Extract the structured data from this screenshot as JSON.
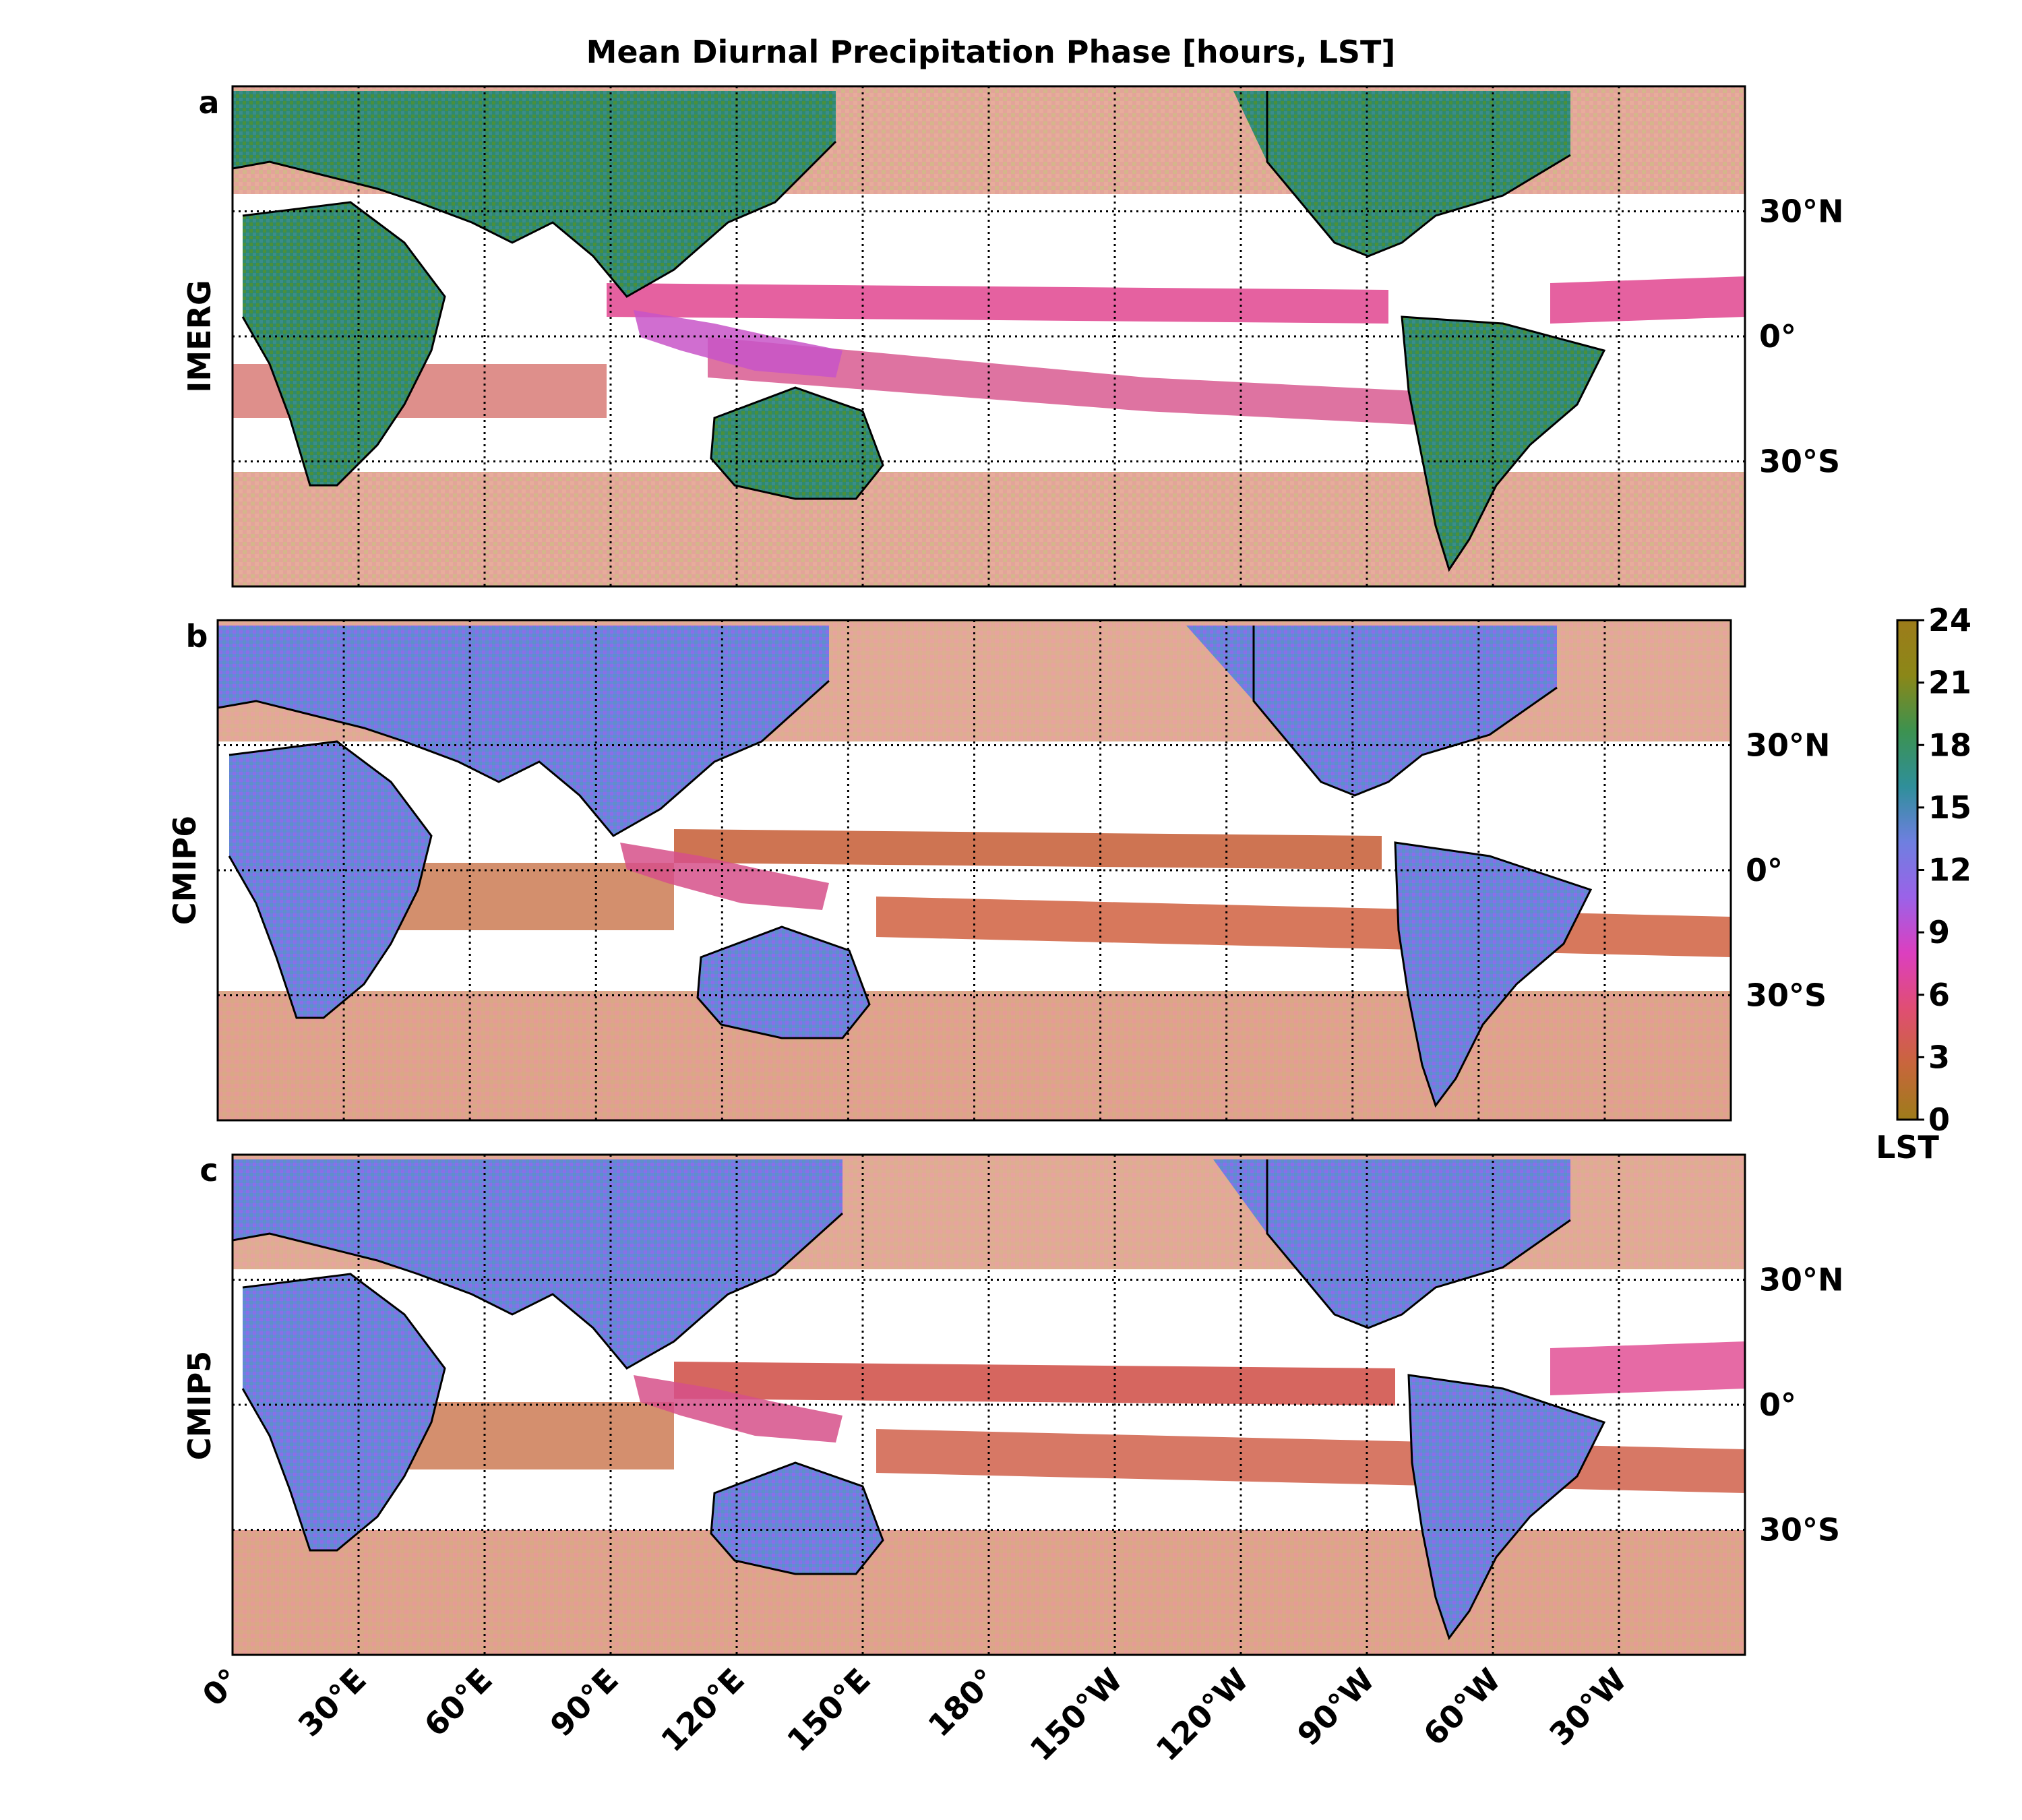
{
  "title": "Mean Diurnal Precipitation Phase [hours, LST]",
  "x_tick_labels": [
    "0°",
    "30°E",
    "60°E",
    "90°E",
    "120°E",
    "150°E",
    "180°",
    "150°W",
    "120°W",
    "90°W",
    "60°W",
    "30°W"
  ],
  "y_tick_labels": [
    "30°N",
    "0°",
    "30°S"
  ],
  "panels": [
    {
      "letter": "a",
      "ylabel": "IMERG"
    },
    {
      "letter": "b",
      "ylabel": "CMIP6"
    },
    {
      "letter": "c",
      "ylabel": "CMIP5"
    }
  ],
  "colorbar": {
    "label": "LST",
    "min": 0,
    "max": 24,
    "tick_labels": [
      "0",
      "3",
      "6",
      "9",
      "12",
      "15",
      "18",
      "21",
      "24"
    ],
    "colors": [
      "#9d7c1a",
      "#c8663c",
      "#e04e73",
      "#dc3fbf",
      "#9b62e8",
      "#6f7fe0",
      "#2f8f9a",
      "#3c9250",
      "#8b8718",
      "#9d7c1a"
    ]
  },
  "chart_data": [
    {
      "type": "heatmap",
      "panel": "a",
      "dataset": "IMERG",
      "title": "Mean Diurnal Precipitation Phase [hours, LST]",
      "xlim": [
        0,
        360
      ],
      "ylim": [
        -60,
        60
      ],
      "value_range": [
        0,
        24
      ],
      "grid": true,
      "regions": [
        {
          "name": "Africa",
          "lon": 20,
          "lat": 0,
          "phase_lst": 17
        },
        {
          "name": "Eurasia",
          "lon": 80,
          "lat": 45,
          "phase_lst": 18
        },
        {
          "name": "Australia",
          "lon": 135,
          "lat": -25,
          "phase_lst": 17
        },
        {
          "name": "North America",
          "lon": 260,
          "lat": 45,
          "phase_lst": 19
        },
        {
          "name": "South America",
          "lon": 300,
          "lat": -10,
          "phase_lst": 16
        },
        {
          "name": "Tropical ocean / ITCZ",
          "lon": 180,
          "lat": 5,
          "phase_lst": 7
        },
        {
          "name": "Southern ocean",
          "lon": 180,
          "lat": -50,
          "phase_lst": 2
        }
      ]
    },
    {
      "type": "heatmap",
      "panel": "b",
      "dataset": "CMIP6",
      "xlim": [
        0,
        360
      ],
      "ylim": [
        -60,
        60
      ],
      "value_range": [
        0,
        24
      ],
      "grid": true,
      "regions": [
        {
          "name": "Africa",
          "lon": 20,
          "lat": 0,
          "phase_lst": 13
        },
        {
          "name": "Eurasia",
          "lon": 80,
          "lat": 45,
          "phase_lst": 12
        },
        {
          "name": "Australia",
          "lon": 135,
          "lat": -25,
          "phase_lst": 14
        },
        {
          "name": "North America",
          "lon": 260,
          "lat": 45,
          "phase_lst": 12
        },
        {
          "name": "South America",
          "lon": 300,
          "lat": -10,
          "phase_lst": 13
        },
        {
          "name": "Tropical ocean / ITCZ",
          "lon": 180,
          "lat": 5,
          "phase_lst": 5
        },
        {
          "name": "Southern ocean",
          "lon": 180,
          "lat": -50,
          "phase_lst": 4
        }
      ]
    },
    {
      "type": "heatmap",
      "panel": "c",
      "dataset": "CMIP5",
      "xlim": [
        0,
        360
      ],
      "ylim": [
        -60,
        60
      ],
      "value_range": [
        0,
        24
      ],
      "grid": true,
      "regions": [
        {
          "name": "Africa",
          "lon": 20,
          "lat": 0,
          "phase_lst": 14
        },
        {
          "name": "Eurasia",
          "lon": 80,
          "lat": 45,
          "phase_lst": 13
        },
        {
          "name": "Australia",
          "lon": 135,
          "lat": -25,
          "phase_lst": 15
        },
        {
          "name": "North America",
          "lon": 260,
          "lat": 45,
          "phase_lst": 13
        },
        {
          "name": "South America",
          "lon": 300,
          "lat": -10,
          "phase_lst": 13
        },
        {
          "name": "Tropical ocean / ITCZ",
          "lon": 180,
          "lat": 5,
          "phase_lst": 5
        },
        {
          "name": "Southern ocean",
          "lon": 180,
          "lat": -50,
          "phase_lst": 4
        }
      ]
    }
  ]
}
